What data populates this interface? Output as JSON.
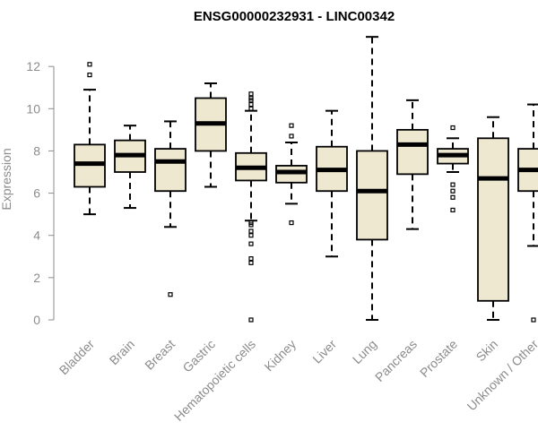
{
  "chart_data": {
    "type": "box",
    "title": "ENSG00000232931 - LINC00342",
    "xlabel": "",
    "ylabel": "Expression",
    "ylim": [
      0,
      13.4
    ],
    "yticks": [
      0,
      2,
      4,
      6,
      8,
      10,
      12
    ],
    "box_fill": "#efe8d0",
    "grid": false,
    "categories": [
      "Bladder",
      "Brain",
      "Breast",
      "Gastric",
      "Hematopoietic cells",
      "Kidney",
      "Liver",
      "Lung",
      "Pancreas",
      "Prostate",
      "Skin",
      "Unknown / Other"
    ],
    "boxes": [
      {
        "whisker_low": 5.0,
        "q1": 6.3,
        "median": 7.4,
        "q3": 8.3,
        "whisker_high": 10.9,
        "outliers": [
          11.6,
          12.1
        ]
      },
      {
        "whisker_low": 5.3,
        "q1": 7.0,
        "median": 7.8,
        "q3": 8.5,
        "whisker_high": 9.2,
        "outliers": []
      },
      {
        "whisker_low": 4.4,
        "q1": 6.1,
        "median": 7.5,
        "q3": 8.1,
        "whisker_high": 9.4,
        "outliers": [
          1.2
        ]
      },
      {
        "whisker_low": 6.3,
        "q1": 8.0,
        "median": 9.3,
        "q3": 10.5,
        "whisker_high": 11.2,
        "outliers": []
      },
      {
        "whisker_low": 4.7,
        "q1": 6.6,
        "median": 7.2,
        "q3": 7.9,
        "whisker_high": 9.9,
        "outliers": [
          0.0,
          2.7,
          2.9,
          3.6,
          4.0,
          4.2,
          4.5,
          4.6,
          10.0,
          10.2,
          10.4,
          10.5,
          10.7
        ]
      },
      {
        "whisker_low": 5.5,
        "q1": 6.5,
        "median": 7.0,
        "q3": 7.3,
        "whisker_high": 8.4,
        "outliers": [
          4.6,
          8.7,
          9.2
        ]
      },
      {
        "whisker_low": 3.0,
        "q1": 6.1,
        "median": 7.1,
        "q3": 8.2,
        "whisker_high": 9.9,
        "outliers": []
      },
      {
        "whisker_low": 0.0,
        "q1": 3.8,
        "median": 6.1,
        "q3": 8.0,
        "whisker_high": 13.4,
        "outliers": []
      },
      {
        "whisker_low": 4.3,
        "q1": 6.9,
        "median": 8.3,
        "q3": 9.0,
        "whisker_high": 10.4,
        "outliers": []
      },
      {
        "whisker_low": 7.0,
        "q1": 7.4,
        "median": 7.8,
        "q3": 8.1,
        "whisker_high": 8.6,
        "outliers": [
          5.2,
          5.8,
          6.1,
          6.4,
          9.1
        ]
      },
      {
        "whisker_low": 0.0,
        "q1": 0.9,
        "median": 6.7,
        "q3": 8.6,
        "whisker_high": 9.6,
        "outliers": []
      },
      {
        "whisker_low": 3.5,
        "q1": 6.1,
        "median": 7.1,
        "q3": 8.1,
        "whisker_high": 10.2,
        "outliers": [
          0.0
        ]
      }
    ]
  }
}
